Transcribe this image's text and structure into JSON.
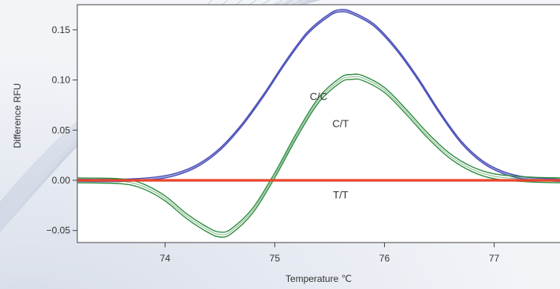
{
  "chart_data": {
    "type": "line",
    "xlabel": "Temperature ℃",
    "ylabel": "Difference RFU",
    "xlim": [
      73.2,
      77.6
    ],
    "ylim": [
      -0.062,
      0.175
    ],
    "x_ticks": [
      74,
      75,
      76,
      77
    ],
    "y_ticks": [
      -0.05,
      0.0,
      0.05,
      0.1,
      0.15
    ],
    "x_tick_labels": [
      "74",
      "75",
      "76",
      "77"
    ],
    "y_tick_labels": [
      "−0.05",
      "0.00",
      "0.05",
      "0.10",
      "0.15"
    ],
    "grid": false,
    "series": [
      {
        "name": "C/C",
        "color": "#4a4fb8",
        "x": [
          73.2,
          73.6,
          73.9,
          74.1,
          74.3,
          74.5,
          74.7,
          74.9,
          75.1,
          75.3,
          75.5,
          75.6,
          75.7,
          75.9,
          76.1,
          76.3,
          76.5,
          76.7,
          76.9,
          77.1,
          77.3,
          77.6
        ],
        "y": [
          0.0,
          0.0,
          0.002,
          0.006,
          0.015,
          0.031,
          0.055,
          0.085,
          0.118,
          0.147,
          0.165,
          0.169,
          0.167,
          0.155,
          0.132,
          0.102,
          0.068,
          0.038,
          0.018,
          0.007,
          0.002,
          0.0
        ]
      },
      {
        "name": "C/T",
        "color": "#2e8b3e",
        "x": [
          73.2,
          73.6,
          73.8,
          74.0,
          74.2,
          74.4,
          74.5,
          74.6,
          74.8,
          75.0,
          75.2,
          75.4,
          75.6,
          75.7,
          75.8,
          76.0,
          76.2,
          76.4,
          76.6,
          76.8,
          77.0,
          77.3,
          77.6
        ],
        "y": [
          0.0,
          -0.001,
          -0.006,
          -0.018,
          -0.036,
          -0.05,
          -0.054,
          -0.051,
          -0.03,
          0.005,
          0.045,
          0.08,
          0.1,
          0.103,
          0.102,
          0.09,
          0.068,
          0.044,
          0.024,
          0.011,
          0.004,
          0.001,
          0.0
        ]
      },
      {
        "name": "T/T",
        "color": "#e8452c",
        "x": [
          73.2,
          74.0,
          75.0,
          76.0,
          77.0,
          77.6
        ],
        "y": [
          0.0,
          0.0,
          0.0,
          0.0,
          0.0,
          0.0
        ]
      }
    ],
    "annotations": [
      {
        "text": "C/C",
        "x": 75.4,
        "y": 0.08
      },
      {
        "text": "C/T",
        "x": 75.6,
        "y": 0.053
      },
      {
        "text": "T/T",
        "x": 75.6,
        "y": -0.018
      }
    ]
  }
}
